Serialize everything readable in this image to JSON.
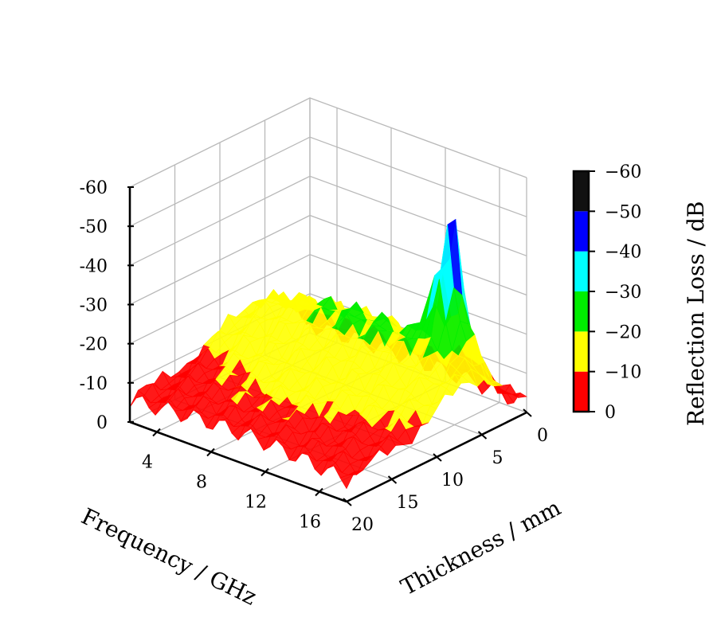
{
  "chart_data": {
    "type": "surface3d",
    "title": "",
    "xlabel": "Frequency / GHz",
    "ylabel": "Thickness / mm",
    "zlabel": "",
    "x_ticks": [
      "4",
      "8",
      "12",
      "16"
    ],
    "x_tick_values": [
      4,
      8,
      12,
      16
    ],
    "xlim": [
      2,
      18
    ],
    "y_ticks": [
      "0",
      "5",
      "10",
      "15",
      "20"
    ],
    "y_tick_values": [
      0,
      5,
      10,
      15,
      20
    ],
    "ylim": [
      0,
      20
    ],
    "z_ticks": [
      "0",
      "-10",
      "-20",
      "-30",
      "-40",
      "-50",
      "-60"
    ],
    "z_tick_values": [
      0,
      -10,
      -20,
      -30,
      -40,
      -50,
      -60
    ],
    "zlim": [
      0,
      -60
    ],
    "grid": true,
    "colorbar": {
      "label": "Reflection Loss / dB",
      "ticks": [
        "0",
        "−10",
        "−20",
        "−30",
        "−40",
        "−50",
        "−60"
      ],
      "levels": [
        {
          "from": 0,
          "to": -10,
          "color": "#ff0000"
        },
        {
          "from": -10,
          "to": -20,
          "color": "#ffff00"
        },
        {
          "from": -20,
          "to": -30,
          "color": "#00ee00"
        },
        {
          "from": -30,
          "to": -40,
          "color": "#00ffff"
        },
        {
          "from": -40,
          "to": -50,
          "color": "#0000ff"
        },
        {
          "from": -50,
          "to": -60,
          "color": "#111111"
        }
      ]
    },
    "surface_profile": {
      "thickness_mm": [
        0,
        2,
        4,
        6,
        8,
        10,
        12,
        14,
        16,
        18,
        20
      ],
      "base_rl_db": [
        -3,
        -10,
        -17,
        -20,
        -18,
        -15,
        -12,
        -10,
        -9,
        -8,
        -7
      ],
      "peak": {
        "frequency_ghz": 15,
        "thickness_mm": 4,
        "rl_db": -58
      }
    }
  }
}
